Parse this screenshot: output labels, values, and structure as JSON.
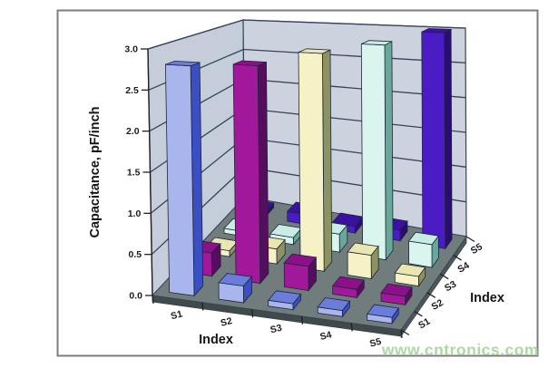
{
  "watermark": "www.cntronics.com",
  "colors": {
    "background": "#ffffff",
    "frame": "#7d7d7d",
    "wall_left": "#c5cdda",
    "wall_back": "#ccd3de",
    "grid": "#37435a",
    "floor_top": "#707d7c",
    "floor_front": "#3f4a49",
    "floor_side": "#4c5856",
    "axis": "#222222",
    "text": "#1c1c1c",
    "bar_edge": "#1c2638",
    "watermark_color": "#a6d99c"
  },
  "chart_data": {
    "type": "bar",
    "variant": "3d-column-matrix",
    "title": "",
    "value_axis": {
      "label": "Capacitance, pF/inch",
      "min": 0,
      "max": 3,
      "tick_step": 0.5,
      "tick_labels": [
        "0.0",
        "0.5",
        "1.0",
        "1.5",
        "2.0",
        "2.5",
        "3.0"
      ]
    },
    "x_axis": {
      "label": "Index",
      "categories": [
        "S1",
        "S2",
        "S3",
        "S4",
        "S5"
      ]
    },
    "depth_axis": {
      "label": "Index",
      "categories": [
        "S1",
        "S2",
        "S3",
        "S4",
        "S5"
      ]
    },
    "legend": "none",
    "grid": "on",
    "series": [
      {
        "name": "S1",
        "values": [
          2.8,
          0.2,
          0.07,
          0.07,
          0.07
        ],
        "colors": {
          "front": "#a9b5ed",
          "side": "#3b4fc4",
          "top": "#6b7cda"
        }
      },
      {
        "name": "S2",
        "values": [
          0.3,
          2.75,
          0.3,
          0.1,
          0.1
        ],
        "colors": {
          "front": "#a2189b",
          "side": "#570d5e",
          "top": "#8c1089"
        }
      },
      {
        "name": "S3",
        "values": [
          0.08,
          0.2,
          2.85,
          0.3,
          0.12
        ],
        "colors": {
          "front": "#f6f2c6",
          "side": "#8d9263",
          "top": "#e9e6b0"
        }
      },
      {
        "name": "S4",
        "values": [
          0.07,
          0.1,
          0.25,
          2.9,
          0.3
        ],
        "colors": {
          "front": "#daf5ee",
          "side": "#68a89b",
          "top": "#c9ece4"
        }
      },
      {
        "name": "S5",
        "values": [
          0.07,
          0.15,
          0.1,
          0.15,
          3.0
        ],
        "colors": {
          "front": "#4b1bc5",
          "side": "#2a0c72",
          "top": "#3a11a0"
        }
      }
    ]
  }
}
